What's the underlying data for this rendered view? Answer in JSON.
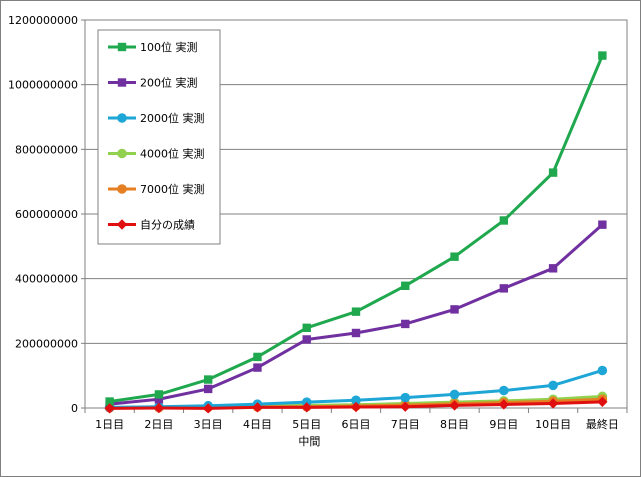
{
  "chart_data": {
    "type": "line",
    "title": "",
    "xlabel": "中間",
    "ylabel": "",
    "ylim": [
      0,
      1200000000
    ],
    "yticks": [
      0,
      200000000,
      400000000,
      600000000,
      800000000,
      1000000000,
      1200000000
    ],
    "ytick_labels": [
      "0",
      "200000000",
      "400000000",
      "600000000",
      "800000000",
      "1000000000",
      "1200000000"
    ],
    "grid": true,
    "legend_position": "top-left",
    "categories": [
      "1日目",
      "2日目",
      "3日目",
      "4日目",
      "5日目",
      "6日目",
      "7日目",
      "8日目",
      "9日目",
      "10日目",
      "最終日"
    ],
    "series": [
      {
        "name": "100位 実測",
        "color": "#1fa84e",
        "marker": "square",
        "values": [
          20000000,
          42000000,
          88000000,
          158000000,
          248000000,
          298000000,
          378000000,
          468000000,
          580000000,
          728000000,
          1090000000
        ]
      },
      {
        "name": "200位 実測",
        "color": "#7030a0",
        "marker": "square",
        "values": [
          12000000,
          27000000,
          59000000,
          125000000,
          212000000,
          232000000,
          260000000,
          305000000,
          370000000,
          432000000,
          567000000
        ]
      },
      {
        "name": "2000位 実測",
        "color": "#1ea6d6",
        "marker": "circle",
        "values": [
          2000000,
          4000000,
          7000000,
          12000000,
          18000000,
          24000000,
          32000000,
          42000000,
          54000000,
          70000000,
          116000000
        ]
      },
      {
        "name": "4000位 実測",
        "color": "#92d050",
        "marker": "circle",
        "values": [
          1000000,
          2000000,
          4000000,
          6000000,
          8000000,
          10000000,
          14000000,
          18000000,
          22000000,
          27000000,
          36000000
        ]
      },
      {
        "name": "7000位 実測",
        "color": "#e67e22",
        "marker": "circle",
        "values": [
          500000,
          1000000,
          2000000,
          3000000,
          4000000,
          6000000,
          9000000,
          13000000,
          17000000,
          21000000,
          27000000
        ]
      },
      {
        "name": "自分の成績",
        "color": "#e01010",
        "marker": "diamond",
        "values": [
          -1000000,
          0,
          -1000000,
          2000000,
          2000000,
          3000000,
          4000000,
          8000000,
          11000000,
          14000000,
          19000000
        ]
      }
    ]
  }
}
